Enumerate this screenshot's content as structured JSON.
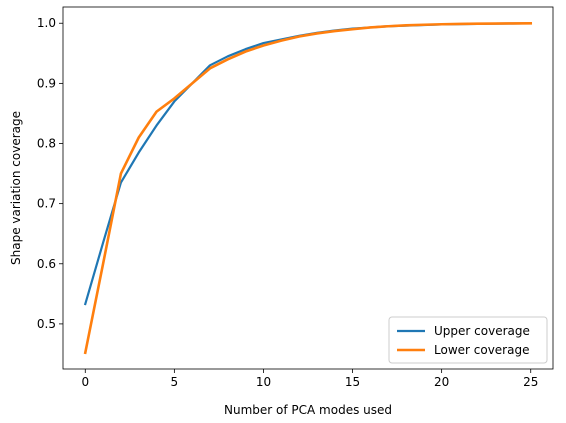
{
  "chart_data": {
    "type": "line",
    "title": "",
    "xlabel": "Number of PCA modes used",
    "ylabel": "Shape variation coverage",
    "xlim": [
      -1.25,
      26.25
    ],
    "ylim": [
      0.425,
      1.027
    ],
    "xticks": [
      0,
      5,
      10,
      15,
      20,
      25
    ],
    "yticks": [
      0.5,
      0.6,
      0.7,
      0.8,
      0.9,
      1.0
    ],
    "grid": false,
    "legend_position": "lower-right",
    "x": [
      0,
      1,
      2,
      3,
      4,
      5,
      6,
      7,
      8,
      9,
      10,
      11,
      12,
      13,
      14,
      15,
      16,
      17,
      18,
      19,
      20,
      21,
      22,
      23,
      24,
      25
    ],
    "series": [
      {
        "name": "Upper coverage",
        "color": "#1f77b4",
        "values": [
          0.533,
          0.635,
          0.735,
          0.785,
          0.83,
          0.87,
          0.9,
          0.93,
          0.945,
          0.957,
          0.967,
          0.973,
          0.979,
          0.984,
          0.988,
          0.991,
          0.993,
          0.995,
          0.996,
          0.997,
          0.998,
          0.9985,
          0.999,
          0.9993,
          0.9996,
          0.9999
        ]
      },
      {
        "name": "Lower coverage",
        "color": "#ff7f0e",
        "values": [
          0.452,
          0.6,
          0.75,
          0.81,
          0.853,
          0.875,
          0.9,
          0.925,
          0.94,
          0.953,
          0.963,
          0.971,
          0.978,
          0.983,
          0.987,
          0.99,
          0.993,
          0.995,
          0.9965,
          0.9975,
          0.9983,
          0.9988,
          0.9992,
          0.9995,
          0.9997,
          0.9999
        ]
      }
    ]
  }
}
